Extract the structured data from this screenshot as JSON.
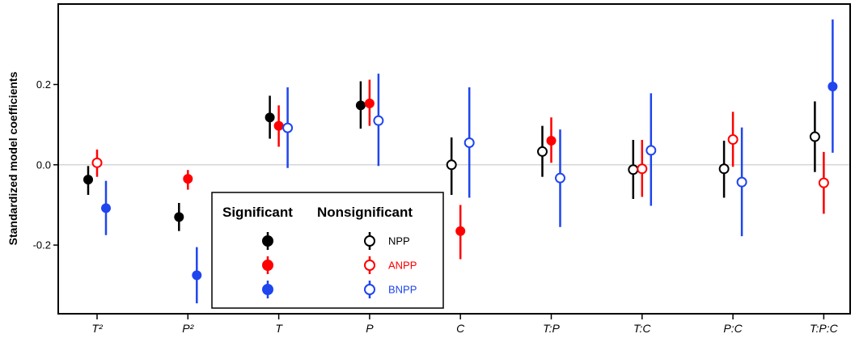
{
  "chart_data": {
    "type": "scatter",
    "ylabel": "Standardized model coefficients",
    "xlabel": "",
    "ylim": [
      -0.37,
      0.4
    ],
    "yticks": [
      -0.2,
      0.0,
      0.2
    ],
    "ytick_labels": [
      "-0.2",
      "0.0",
      "0.2"
    ],
    "categories": [
      "T²",
      "P²",
      "T",
      "P",
      "C",
      "T:P",
      "T:C",
      "P:C",
      "T:P:C"
    ],
    "zero_line": true,
    "grid": false,
    "legend": {
      "placement": "bottom-left-center",
      "heading_significant": "Significant",
      "heading_nonsignificant": "Nonsignificant"
    },
    "series": [
      {
        "name": "NPP",
        "color": "#000000",
        "points": [
          {
            "x": "T²",
            "y": -0.037,
            "lo": -0.075,
            "hi": -0.003,
            "significant": true
          },
          {
            "x": "P²",
            "y": -0.13,
            "lo": -0.165,
            "hi": -0.095,
            "significant": true
          },
          {
            "x": "T",
            "y": 0.118,
            "lo": 0.065,
            "hi": 0.172,
            "significant": true
          },
          {
            "x": "P",
            "y": 0.148,
            "lo": 0.09,
            "hi": 0.208,
            "significant": true
          },
          {
            "x": "C",
            "y": 0.0,
            "lo": -0.075,
            "hi": 0.068,
            "significant": false
          },
          {
            "x": "T:P",
            "y": 0.033,
            "lo": -0.03,
            "hi": 0.097,
            "significant": false
          },
          {
            "x": "T:C",
            "y": -0.012,
            "lo": -0.085,
            "hi": 0.062,
            "significant": false
          },
          {
            "x": "P:C",
            "y": -0.01,
            "lo": -0.082,
            "hi": 0.06,
            "significant": false
          },
          {
            "x": "T:P:C",
            "y": 0.07,
            "lo": -0.018,
            "hi": 0.158,
            "significant": false
          }
        ]
      },
      {
        "name": "ANPP",
        "color": "#ff0000",
        "points": [
          {
            "x": "T²",
            "y": 0.005,
            "lo": -0.03,
            "hi": 0.038,
            "significant": false
          },
          {
            "x": "P²",
            "y": -0.035,
            "lo": -0.062,
            "hi": -0.013,
            "significant": true
          },
          {
            "x": "T",
            "y": 0.097,
            "lo": 0.045,
            "hi": 0.148,
            "significant": true
          },
          {
            "x": "P",
            "y": 0.153,
            "lo": 0.097,
            "hi": 0.212,
            "significant": true
          },
          {
            "x": "C",
            "y": -0.165,
            "lo": -0.235,
            "hi": -0.1,
            "significant": true
          },
          {
            "x": "T:P",
            "y": 0.06,
            "lo": 0.005,
            "hi": 0.118,
            "significant": true
          },
          {
            "x": "T:C",
            "y": -0.01,
            "lo": -0.08,
            "hi": 0.062,
            "significant": false
          },
          {
            "x": "P:C",
            "y": 0.063,
            "lo": -0.005,
            "hi": 0.132,
            "significant": false
          },
          {
            "x": "T:P:C",
            "y": -0.045,
            "lo": -0.122,
            "hi": 0.032,
            "significant": false
          }
        ]
      },
      {
        "name": "BNPP",
        "color": "#1f45ee",
        "points": [
          {
            "x": "T²",
            "y": -0.108,
            "lo": -0.175,
            "hi": -0.04,
            "significant": true
          },
          {
            "x": "P²",
            "y": -0.275,
            "lo": -0.345,
            "hi": -0.205,
            "significant": true
          },
          {
            "x": "T",
            "y": 0.092,
            "lo": -0.008,
            "hi": 0.193,
            "significant": false
          },
          {
            "x": "P",
            "y": 0.11,
            "lo": -0.003,
            "hi": 0.227,
            "significant": false
          },
          {
            "x": "C",
            "y": 0.055,
            "lo": -0.082,
            "hi": 0.193,
            "significant": false
          },
          {
            "x": "T:P",
            "y": -0.033,
            "lo": -0.155,
            "hi": 0.088,
            "significant": false
          },
          {
            "x": "T:C",
            "y": 0.036,
            "lo": -0.102,
            "hi": 0.178,
            "significant": false
          },
          {
            "x": "P:C",
            "y": -0.043,
            "lo": -0.178,
            "hi": 0.093,
            "significant": false
          },
          {
            "x": "T:P:C",
            "y": 0.195,
            "lo": 0.03,
            "hi": 0.362,
            "significant": true
          }
        ]
      }
    ]
  }
}
